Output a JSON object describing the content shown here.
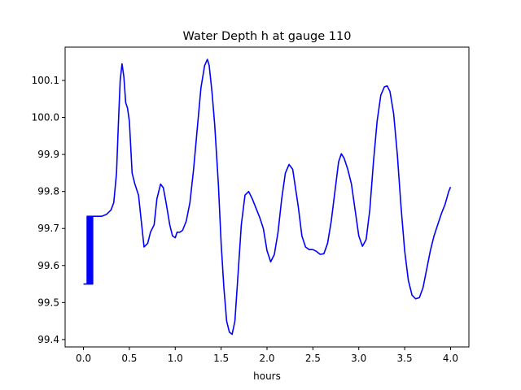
{
  "chart_data": {
    "type": "line",
    "title": "Water Depth h at gauge 110",
    "xlabel": "hours",
    "ylabel": "",
    "xlim": [
      -0.2,
      4.2
    ],
    "ylim": [
      99.38,
      100.19
    ],
    "xticks": [
      0.0,
      0.5,
      1.0,
      1.5,
      2.0,
      2.5,
      3.0,
      3.5,
      4.0
    ],
    "xtick_labels": [
      "0.0",
      "0.5",
      "1.0",
      "1.5",
      "2.0",
      "2.5",
      "3.0",
      "3.5",
      "4.0"
    ],
    "yticks": [
      99.4,
      99.5,
      99.6,
      99.7,
      99.8,
      99.9,
      100.0,
      100.1
    ],
    "ytick_labels": [
      "99.4",
      "99.5",
      "99.6",
      "99.7",
      "99.8",
      "99.9",
      "100.0",
      "100.1"
    ],
    "grid": false,
    "legend": "none",
    "series": [
      {
        "color": "#0000ff",
        "x": [
          0.0,
          0.04,
          0.04,
          0.05,
          0.05,
          0.06,
          0.06,
          0.07,
          0.07,
          0.08,
          0.08,
          0.09,
          0.09,
          0.1,
          0.1,
          0.13,
          0.13,
          0.15,
          0.2,
          0.25,
          0.3,
          0.33,
          0.36,
          0.38,
          0.4,
          0.42,
          0.44,
          0.46,
          0.48,
          0.5,
          0.53,
          0.56,
          0.6,
          0.63,
          0.66,
          0.7,
          0.73,
          0.77,
          0.8,
          0.84,
          0.87,
          0.9,
          0.94,
          0.97,
          1.0,
          1.02,
          1.05,
          1.08,
          1.12,
          1.16,
          1.2,
          1.24,
          1.28,
          1.32,
          1.35,
          1.37,
          1.4,
          1.43,
          1.47,
          1.5,
          1.53,
          1.56,
          1.59,
          1.62,
          1.65,
          1.68,
          1.72,
          1.76,
          1.8,
          1.84,
          1.88,
          1.92,
          1.96,
          2.0,
          2.04,
          2.08,
          2.12,
          2.16,
          2.2,
          2.24,
          2.28,
          2.31,
          2.34,
          2.38,
          2.42,
          2.46,
          2.5,
          2.54,
          2.58,
          2.62,
          2.66,
          2.7,
          2.74,
          2.78,
          2.81,
          2.84,
          2.88,
          2.92,
          2.96,
          3.0,
          3.04,
          3.08,
          3.12,
          3.16,
          3.2,
          3.24,
          3.28,
          3.31,
          3.34,
          3.38,
          3.42,
          3.46,
          3.5,
          3.54,
          3.58,
          3.62,
          3.66,
          3.7,
          3.74,
          3.78,
          3.82,
          3.86,
          3.9,
          3.94,
          3.98,
          4.0
        ],
        "y": [
          99.55,
          99.55,
          99.733,
          99.733,
          99.55,
          99.55,
          99.733,
          99.733,
          99.55,
          99.55,
          99.733,
          99.733,
          99.55,
          99.55,
          99.733,
          99.733,
          99.733,
          99.733,
          99.733,
          99.738,
          99.75,
          99.77,
          99.85,
          99.98,
          100.1,
          100.145,
          100.11,
          100.04,
          100.025,
          99.99,
          99.85,
          99.82,
          99.79,
          99.72,
          99.65,
          99.66,
          99.69,
          99.71,
          99.78,
          99.82,
          99.81,
          99.77,
          99.71,
          99.68,
          99.675,
          99.69,
          99.69,
          99.695,
          99.72,
          99.77,
          99.86,
          99.97,
          100.08,
          100.14,
          100.157,
          100.14,
          100.07,
          99.98,
          99.82,
          99.66,
          99.54,
          99.45,
          99.42,
          99.414,
          99.45,
          99.56,
          99.71,
          99.79,
          99.8,
          99.78,
          99.755,
          99.73,
          99.7,
          99.64,
          99.61,
          99.63,
          99.69,
          99.78,
          99.85,
          99.873,
          99.86,
          99.81,
          99.76,
          99.68,
          99.65,
          99.643,
          99.643,
          99.638,
          99.63,
          99.632,
          99.66,
          99.72,
          99.8,
          99.88,
          99.902,
          99.89,
          99.86,
          99.82,
          99.75,
          99.68,
          99.652,
          99.67,
          99.75,
          99.88,
          99.99,
          100.06,
          100.083,
          100.085,
          100.07,
          100.01,
          99.9,
          99.76,
          99.64,
          99.56,
          99.52,
          99.51,
          99.513,
          99.54,
          99.59,
          99.64,
          99.68,
          99.71,
          99.74,
          99.765,
          99.8,
          99.812
        ]
      }
    ]
  }
}
